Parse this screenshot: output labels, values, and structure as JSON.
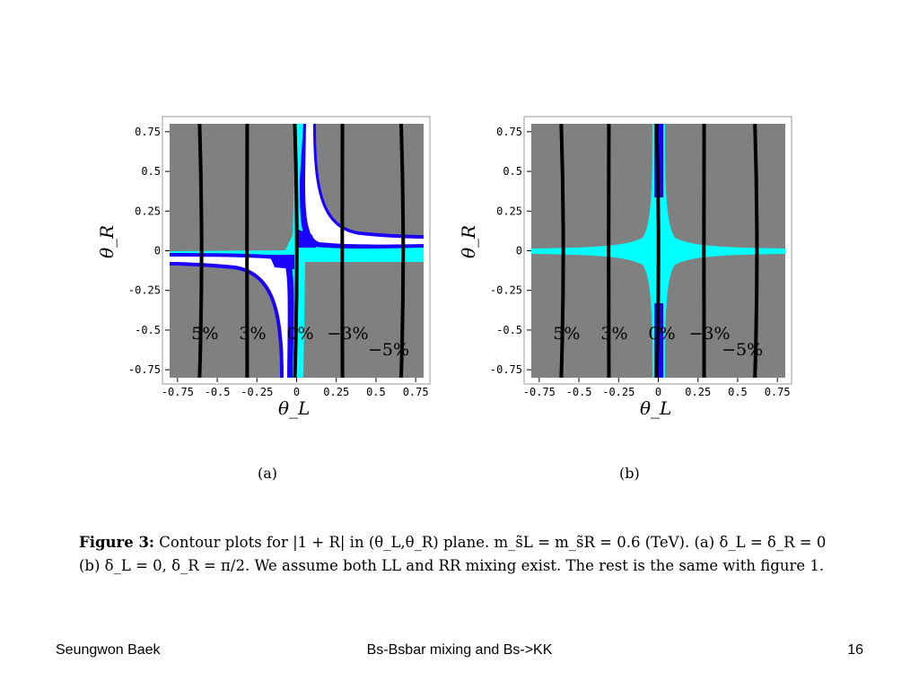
{
  "colors": {
    "gray_region": "#808080",
    "cyan_region": "#00ffff",
    "blue_region": "#1a00ff",
    "white_region": "#ffffff",
    "contour_line": "#000000",
    "frame_edge": "#40e0d0"
  },
  "chart_data": [
    {
      "type": "contour",
      "panel_label": "(a)",
      "xlabel": "θ_L",
      "ylabel": "θ_R",
      "xlim": [
        -0.8,
        0.8
      ],
      "ylim": [
        -0.8,
        0.8
      ],
      "x_ticks": [
        "-0.75",
        "-0.5",
        "-0.25",
        "0",
        "0.25",
        "0.5",
        "0.75"
      ],
      "y_ticks": [
        "0.75",
        "0.5",
        "0.25",
        "0",
        "-0.25",
        "-0.5",
        "-0.75"
      ],
      "x_tick_values": [
        -0.75,
        -0.5,
        -0.25,
        0,
        0.25,
        0.5,
        0.75
      ],
      "y_tick_values": [
        0.75,
        0.5,
        0.25,
        0,
        -0.25,
        -0.5,
        -0.75
      ],
      "contour_x": [
        -0.6,
        -0.3,
        0,
        0.3,
        0.67
      ],
      "contour_labels": [
        "5%",
        "3%",
        "0%",
        "−3%",
        "−5%"
      ],
      "grid": false
    },
    {
      "type": "contour",
      "panel_label": "(b)",
      "xlabel": "θ_L",
      "ylabel": "θ_R",
      "xlim": [
        -0.8,
        0.8
      ],
      "ylim": [
        -0.8,
        0.8
      ],
      "x_ticks": [
        "-0.75",
        "-0.5",
        "-0.25",
        "0",
        "0.25",
        "0.5",
        "0.75"
      ],
      "y_ticks": [
        "0.75",
        "0.5",
        "0.25",
        "0",
        "-0.25",
        "-0.5",
        "-0.75"
      ],
      "x_tick_values": [
        -0.75,
        -0.5,
        -0.25,
        0,
        0.25,
        0.5,
        0.75
      ],
      "y_tick_values": [
        0.75,
        0.5,
        0.25,
        0,
        -0.25,
        -0.5,
        -0.75
      ],
      "contour_x": [
        -0.6,
        -0.3,
        0,
        0.3,
        0.62
      ],
      "contour_labels": [
        "5%",
        "3%",
        "0%",
        "−3%",
        "−5%"
      ],
      "grid": false
    }
  ],
  "caption": {
    "label": "Figure 3:",
    "text": "Contour plots for |1 + R| in (θ_L,θ_R) plane. m_s̃L = m_s̃R = 0.6 (TeV). (a) δ_L = δ_R = 0 (b) δ_L = 0, δ_R = π/2. We assume both LL and RR mixing exist. The rest is the same with figure 1."
  },
  "footer": {
    "author": "Seungwon Baek",
    "title": "Bs-Bsbar mixing and Bs->KK",
    "page": "16"
  }
}
